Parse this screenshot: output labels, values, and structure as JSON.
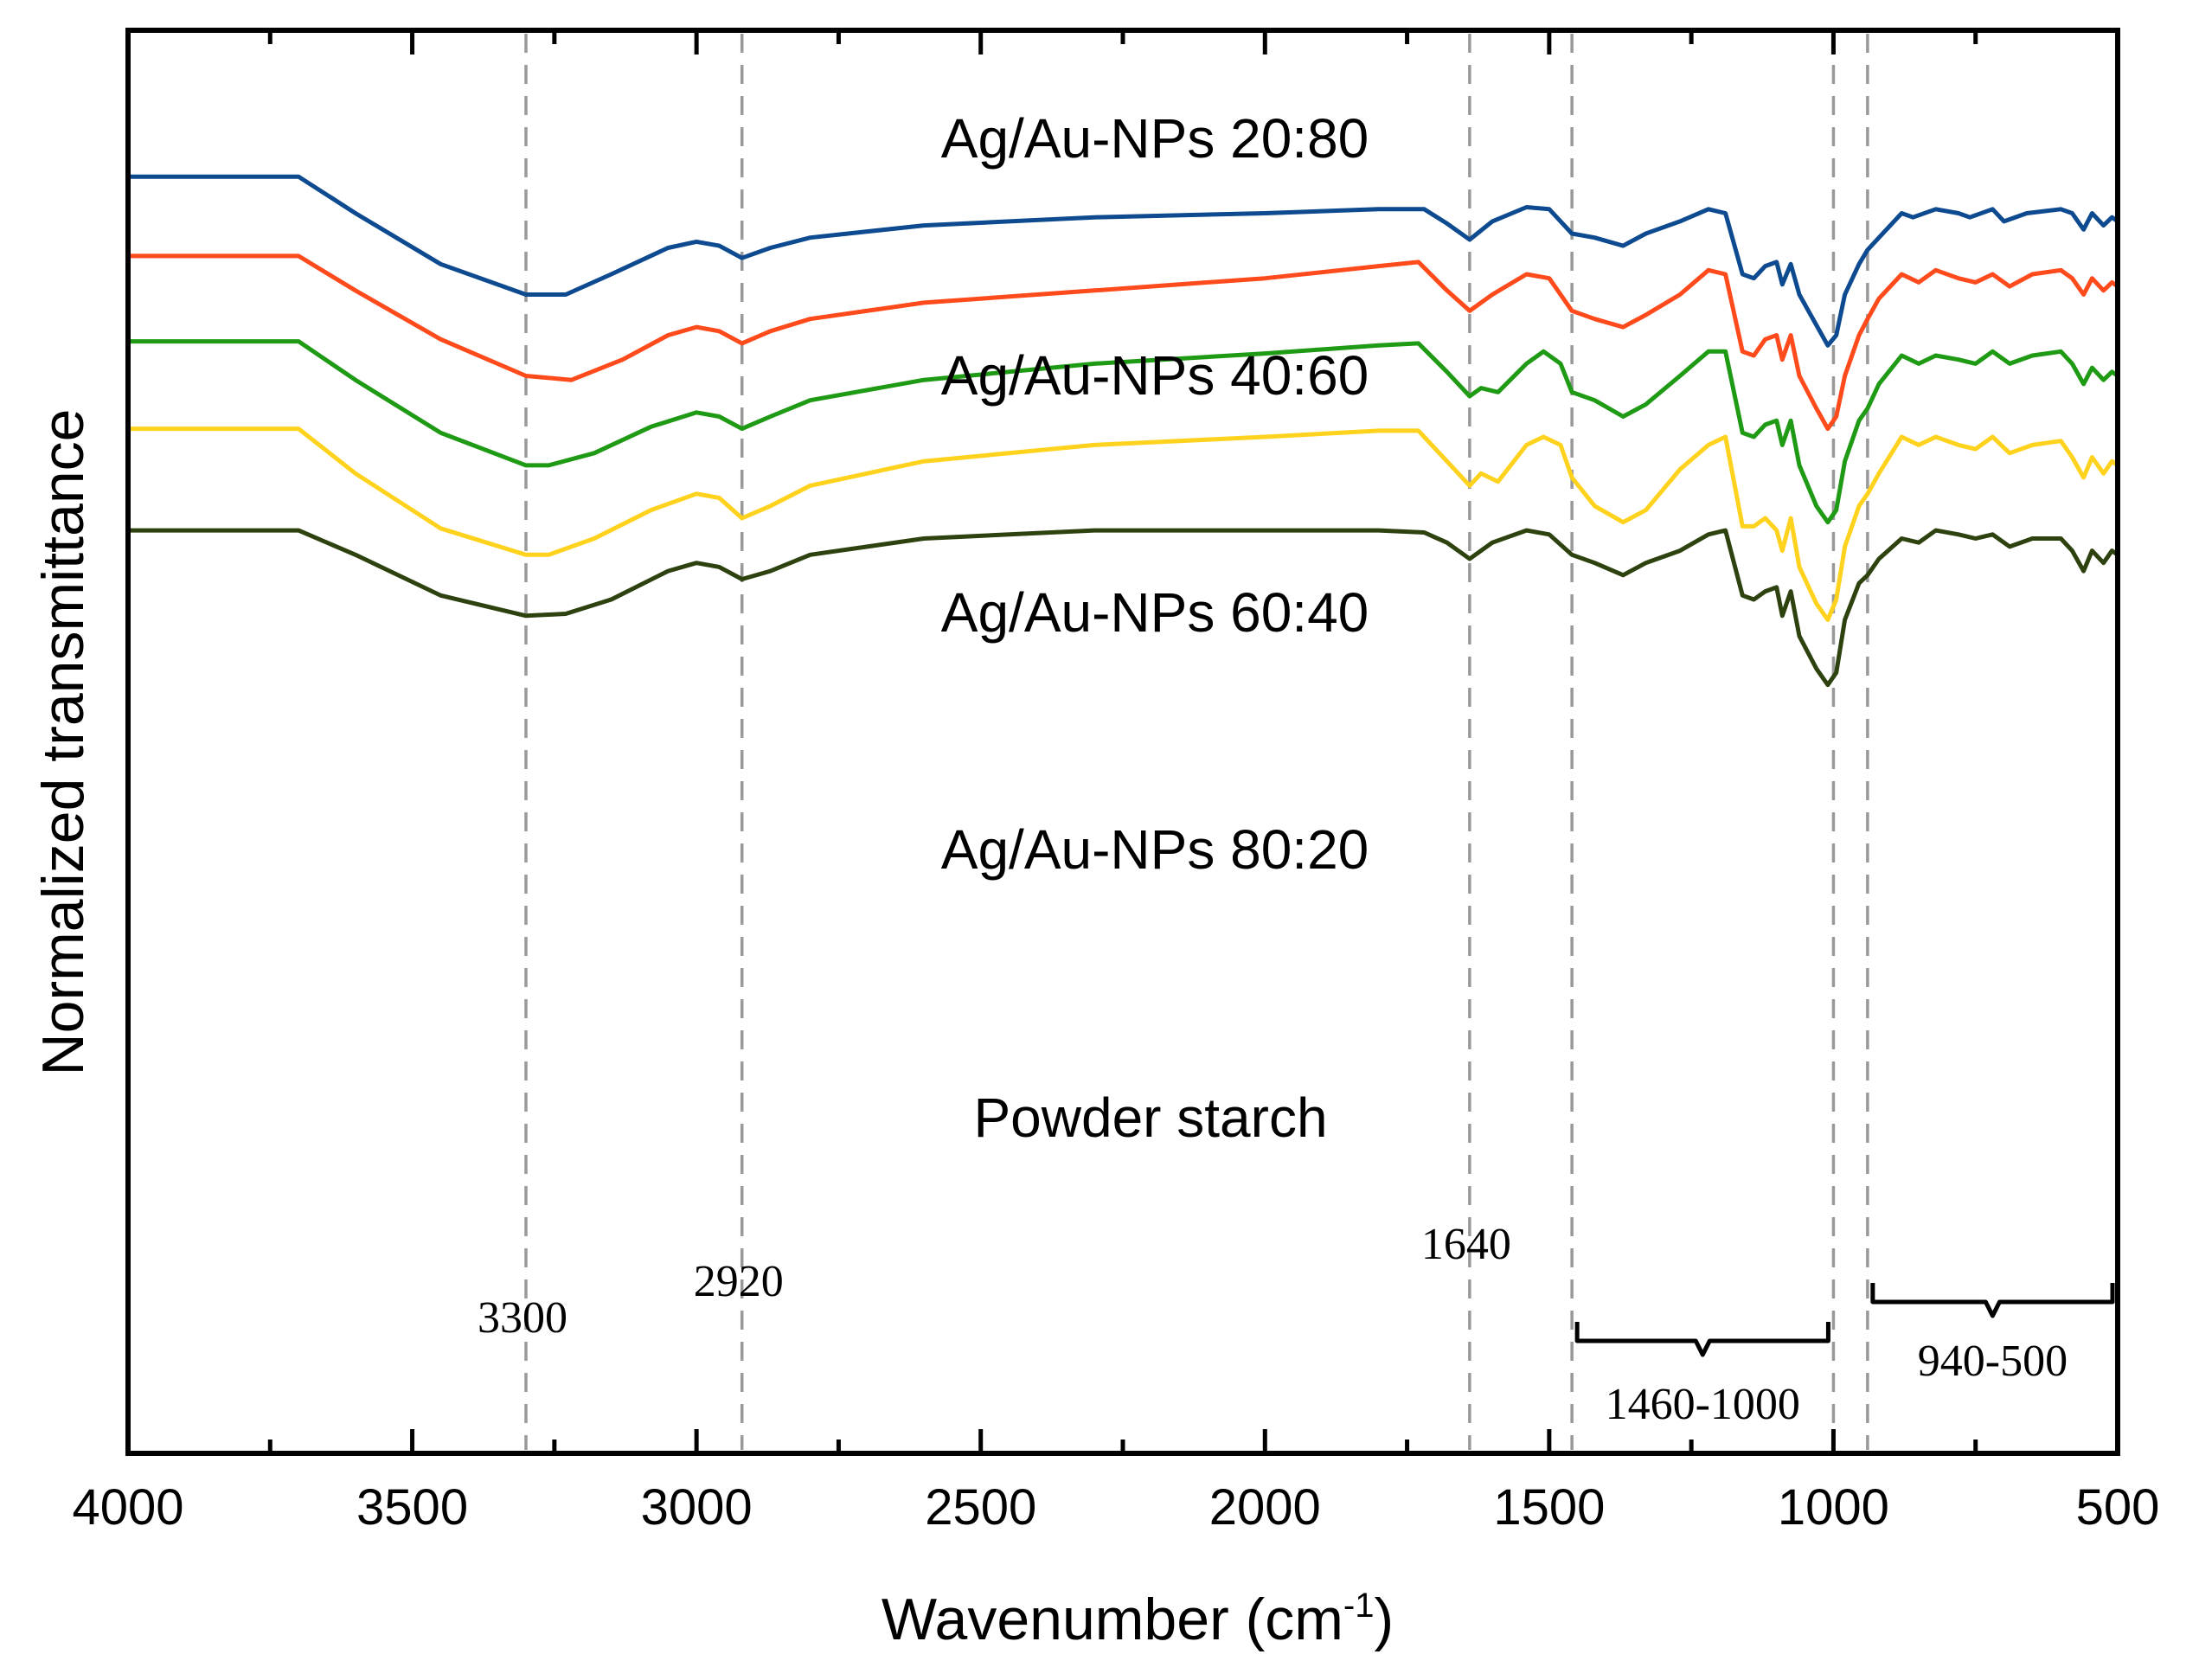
{
  "chart_data": {
    "type": "line",
    "title": "",
    "xlabel": "Wavenumber  (cm",
    "xlabel_sup": "-1",
    "xlabel_close": ")",
    "ylabel": "Normalized transmittance",
    "xlim": [
      4000,
      500
    ],
    "ylim": [
      0,
      7
    ],
    "x_ticks": [
      4000,
      3500,
      3000,
      2500,
      2000,
      1500,
      1000,
      500
    ],
    "x_tick_labels": [
      "4000",
      "3500",
      "3000",
      "2500",
      "2000",
      "1500",
      "1000",
      "500"
    ],
    "grid": false,
    "reference_lines": [
      {
        "x": 3300,
        "label": "3300"
      },
      {
        "x": 2920,
        "label": "2920"
      },
      {
        "x": 1640,
        "label": "1640"
      },
      {
        "x": 1460,
        "label": ""
      },
      {
        "x": 1000,
        "label": ""
      },
      {
        "x": 940,
        "label": ""
      }
    ],
    "ranges": [
      {
        "from": 1460,
        "to": 1000,
        "label": "1460-1000"
      },
      {
        "from": 940,
        "to": 500,
        "label": "940-500"
      }
    ],
    "series": [
      {
        "name": "Ag/Au-NPs 20:80",
        "color": "#0d4a8f",
        "points": [
          [
            4000,
            6.28
          ],
          [
            3700,
            6.28
          ],
          [
            3600,
            6.1
          ],
          [
            3450,
            5.85
          ],
          [
            3300,
            5.7
          ],
          [
            3230,
            5.7
          ],
          [
            3150,
            5.8
          ],
          [
            3050,
            5.93
          ],
          [
            3000,
            5.96
          ],
          [
            2960,
            5.94
          ],
          [
            2920,
            5.88
          ],
          [
            2870,
            5.93
          ],
          [
            2800,
            5.98
          ],
          [
            2600,
            6.04
          ],
          [
            2300,
            6.08
          ],
          [
            2000,
            6.1
          ],
          [
            1800,
            6.12
          ],
          [
            1720,
            6.12
          ],
          [
            1680,
            6.05
          ],
          [
            1640,
            5.97
          ],
          [
            1600,
            6.06
          ],
          [
            1540,
            6.13
          ],
          [
            1500,
            6.12
          ],
          [
            1460,
            6.0
          ],
          [
            1420,
            5.98
          ],
          [
            1370,
            5.94
          ],
          [
            1330,
            6.0
          ],
          [
            1270,
            6.06
          ],
          [
            1220,
            6.12
          ],
          [
            1190,
            6.1
          ],
          [
            1160,
            5.8
          ],
          [
            1140,
            5.78
          ],
          [
            1120,
            5.84
          ],
          [
            1100,
            5.86
          ],
          [
            1090,
            5.75
          ],
          [
            1075,
            5.85
          ],
          [
            1060,
            5.7
          ],
          [
            1030,
            5.55
          ],
          [
            1010,
            5.45
          ],
          [
            995,
            5.5
          ],
          [
            980,
            5.7
          ],
          [
            955,
            5.85
          ],
          [
            940,
            5.92
          ],
          [
            920,
            5.98
          ],
          [
            880,
            6.1
          ],
          [
            860,
            6.08
          ],
          [
            820,
            6.12
          ],
          [
            780,
            6.1
          ],
          [
            760,
            6.08
          ],
          [
            720,
            6.12
          ],
          [
            700,
            6.06
          ],
          [
            660,
            6.1
          ],
          [
            600,
            6.12
          ],
          [
            580,
            6.1
          ],
          [
            560,
            6.02
          ],
          [
            545,
            6.1
          ],
          [
            525,
            6.04
          ],
          [
            510,
            6.08
          ],
          [
            500,
            6.06
          ]
        ]
      },
      {
        "name": "Ag/Au-NPs 40:60",
        "color": "#ff4a1c",
        "points": [
          [
            4000,
            5.89
          ],
          [
            3700,
            5.89
          ],
          [
            3600,
            5.72
          ],
          [
            3450,
            5.48
          ],
          [
            3300,
            5.3
          ],
          [
            3220,
            5.28
          ],
          [
            3130,
            5.38
          ],
          [
            3050,
            5.5
          ],
          [
            3000,
            5.54
          ],
          [
            2960,
            5.52
          ],
          [
            2920,
            5.46
          ],
          [
            2870,
            5.52
          ],
          [
            2800,
            5.58
          ],
          [
            2600,
            5.66
          ],
          [
            2300,
            5.72
          ],
          [
            2000,
            5.78
          ],
          [
            1800,
            5.84
          ],
          [
            1730,
            5.86
          ],
          [
            1680,
            5.72
          ],
          [
            1640,
            5.62
          ],
          [
            1600,
            5.7
          ],
          [
            1540,
            5.8
          ],
          [
            1500,
            5.78
          ],
          [
            1460,
            5.62
          ],
          [
            1420,
            5.58
          ],
          [
            1370,
            5.54
          ],
          [
            1330,
            5.6
          ],
          [
            1270,
            5.7
          ],
          [
            1220,
            5.82
          ],
          [
            1190,
            5.8
          ],
          [
            1160,
            5.42
          ],
          [
            1140,
            5.4
          ],
          [
            1120,
            5.48
          ],
          [
            1100,
            5.5
          ],
          [
            1090,
            5.38
          ],
          [
            1075,
            5.5
          ],
          [
            1060,
            5.3
          ],
          [
            1030,
            5.14
          ],
          [
            1010,
            5.04
          ],
          [
            995,
            5.1
          ],
          [
            980,
            5.3
          ],
          [
            955,
            5.5
          ],
          [
            940,
            5.58
          ],
          [
            920,
            5.68
          ],
          [
            880,
            5.8
          ],
          [
            850,
            5.76
          ],
          [
            820,
            5.82
          ],
          [
            780,
            5.78
          ],
          [
            750,
            5.76
          ],
          [
            720,
            5.8
          ],
          [
            690,
            5.74
          ],
          [
            650,
            5.8
          ],
          [
            600,
            5.82
          ],
          [
            580,
            5.78
          ],
          [
            560,
            5.7
          ],
          [
            545,
            5.78
          ],
          [
            525,
            5.72
          ],
          [
            510,
            5.76
          ],
          [
            500,
            5.74
          ]
        ]
      },
      {
        "name": "Ag/Au-NPs 60:40",
        "color": "#1f9a14",
        "points": [
          [
            4000,
            5.47
          ],
          [
            3700,
            5.47
          ],
          [
            3600,
            5.28
          ],
          [
            3450,
            5.02
          ],
          [
            3300,
            4.86
          ],
          [
            3260,
            4.86
          ],
          [
            3180,
            4.92
          ],
          [
            3080,
            5.05
          ],
          [
            3000,
            5.12
          ],
          [
            2960,
            5.1
          ],
          [
            2920,
            5.04
          ],
          [
            2870,
            5.1
          ],
          [
            2800,
            5.18
          ],
          [
            2600,
            5.28
          ],
          [
            2300,
            5.36
          ],
          [
            2000,
            5.41
          ],
          [
            1800,
            5.45
          ],
          [
            1730,
            5.46
          ],
          [
            1680,
            5.32
          ],
          [
            1640,
            5.2
          ],
          [
            1620,
            5.24
          ],
          [
            1590,
            5.22
          ],
          [
            1540,
            5.36
          ],
          [
            1510,
            5.42
          ],
          [
            1480,
            5.36
          ],
          [
            1460,
            5.22
          ],
          [
            1420,
            5.18
          ],
          [
            1370,
            5.1
          ],
          [
            1330,
            5.16
          ],
          [
            1270,
            5.3
          ],
          [
            1220,
            5.42
          ],
          [
            1190,
            5.42
          ],
          [
            1160,
            5.02
          ],
          [
            1140,
            5.0
          ],
          [
            1120,
            5.06
          ],
          [
            1100,
            5.08
          ],
          [
            1090,
            4.96
          ],
          [
            1075,
            5.08
          ],
          [
            1060,
            4.86
          ],
          [
            1030,
            4.66
          ],
          [
            1010,
            4.58
          ],
          [
            995,
            4.64
          ],
          [
            980,
            4.88
          ],
          [
            955,
            5.08
          ],
          [
            940,
            5.14
          ],
          [
            920,
            5.26
          ],
          [
            880,
            5.4
          ],
          [
            850,
            5.36
          ],
          [
            820,
            5.4
          ],
          [
            780,
            5.38
          ],
          [
            750,
            5.36
          ],
          [
            720,
            5.42
          ],
          [
            690,
            5.36
          ],
          [
            650,
            5.4
          ],
          [
            600,
            5.42
          ],
          [
            580,
            5.36
          ],
          [
            560,
            5.26
          ],
          [
            545,
            5.34
          ],
          [
            525,
            5.28
          ],
          [
            510,
            5.32
          ],
          [
            500,
            5.3
          ]
        ]
      },
      {
        "name": "Ag/Au-NPs 80:20",
        "color": "#ffd21e",
        "points": [
          [
            4000,
            5.04
          ],
          [
            3700,
            5.04
          ],
          [
            3600,
            4.82
          ],
          [
            3450,
            4.55
          ],
          [
            3300,
            4.42
          ],
          [
            3260,
            4.42
          ],
          [
            3180,
            4.5
          ],
          [
            3080,
            4.64
          ],
          [
            3000,
            4.72
          ],
          [
            2960,
            4.7
          ],
          [
            2920,
            4.6
          ],
          [
            2870,
            4.66
          ],
          [
            2800,
            4.76
          ],
          [
            2600,
            4.88
          ],
          [
            2300,
            4.96
          ],
          [
            2000,
            5.0
          ],
          [
            1800,
            5.03
          ],
          [
            1730,
            5.03
          ],
          [
            1680,
            4.88
          ],
          [
            1640,
            4.76
          ],
          [
            1620,
            4.82
          ],
          [
            1590,
            4.78
          ],
          [
            1540,
            4.96
          ],
          [
            1510,
            5.0
          ],
          [
            1480,
            4.96
          ],
          [
            1460,
            4.8
          ],
          [
            1420,
            4.66
          ],
          [
            1370,
            4.58
          ],
          [
            1330,
            4.64
          ],
          [
            1270,
            4.84
          ],
          [
            1220,
            4.96
          ],
          [
            1190,
            5.0
          ],
          [
            1160,
            4.56
          ],
          [
            1140,
            4.56
          ],
          [
            1120,
            4.6
          ],
          [
            1100,
            4.54
          ],
          [
            1090,
            4.44
          ],
          [
            1075,
            4.6
          ],
          [
            1060,
            4.36
          ],
          [
            1030,
            4.18
          ],
          [
            1010,
            4.1
          ],
          [
            995,
            4.2
          ],
          [
            980,
            4.46
          ],
          [
            955,
            4.66
          ],
          [
            940,
            4.72
          ],
          [
            920,
            4.82
          ],
          [
            880,
            5.0
          ],
          [
            850,
            4.96
          ],
          [
            820,
            5.0
          ],
          [
            780,
            4.96
          ],
          [
            750,
            4.94
          ],
          [
            720,
            5.0
          ],
          [
            690,
            4.92
          ],
          [
            650,
            4.96
          ],
          [
            600,
            4.98
          ],
          [
            580,
            4.9
          ],
          [
            560,
            4.8
          ],
          [
            545,
            4.9
          ],
          [
            525,
            4.82
          ],
          [
            510,
            4.88
          ],
          [
            500,
            4.86
          ]
        ]
      },
      {
        "name": "Powder starch",
        "color": "#2e4210",
        "points": [
          [
            4000,
            4.54
          ],
          [
            3700,
            4.54
          ],
          [
            3600,
            4.42
          ],
          [
            3450,
            4.22
          ],
          [
            3300,
            4.12
          ],
          [
            3230,
            4.13
          ],
          [
            3150,
            4.2
          ],
          [
            3050,
            4.34
          ],
          [
            3000,
            4.38
          ],
          [
            2960,
            4.36
          ],
          [
            2920,
            4.3
          ],
          [
            2870,
            4.34
          ],
          [
            2800,
            4.42
          ],
          [
            2600,
            4.5
          ],
          [
            2300,
            4.54
          ],
          [
            2000,
            4.54
          ],
          [
            1800,
            4.54
          ],
          [
            1720,
            4.53
          ],
          [
            1680,
            4.48
          ],
          [
            1640,
            4.4
          ],
          [
            1600,
            4.48
          ],
          [
            1540,
            4.54
          ],
          [
            1500,
            4.52
          ],
          [
            1460,
            4.42
          ],
          [
            1420,
            4.38
          ],
          [
            1370,
            4.32
          ],
          [
            1330,
            4.38
          ],
          [
            1270,
            4.44
          ],
          [
            1220,
            4.52
          ],
          [
            1190,
            4.54
          ],
          [
            1160,
            4.22
          ],
          [
            1140,
            4.2
          ],
          [
            1120,
            4.24
          ],
          [
            1100,
            4.26
          ],
          [
            1090,
            4.12
          ],
          [
            1075,
            4.24
          ],
          [
            1060,
            4.02
          ],
          [
            1030,
            3.86
          ],
          [
            1010,
            3.78
          ],
          [
            995,
            3.84
          ],
          [
            980,
            4.1
          ],
          [
            955,
            4.28
          ],
          [
            940,
            4.32
          ],
          [
            920,
            4.4
          ],
          [
            880,
            4.5
          ],
          [
            850,
            4.48
          ],
          [
            820,
            4.54
          ],
          [
            780,
            4.52
          ],
          [
            750,
            4.5
          ],
          [
            720,
            4.52
          ],
          [
            690,
            4.46
          ],
          [
            650,
            4.5
          ],
          [
            600,
            4.5
          ],
          [
            580,
            4.44
          ],
          [
            560,
            4.34
          ],
          [
            545,
            4.44
          ],
          [
            525,
            4.38
          ],
          [
            510,
            4.44
          ],
          [
            500,
            4.42
          ]
        ]
      }
    ],
    "series_labels": [
      {
        "text": "Ag/Au-NPs 20:80"
      },
      {
        "text": "Ag/Au-NPs 40:60"
      },
      {
        "text": "Ag/Au-NPs 60:40"
      },
      {
        "text": "Ag/Au-NPs 80:20"
      },
      {
        "text": "Powder starch"
      }
    ]
  }
}
